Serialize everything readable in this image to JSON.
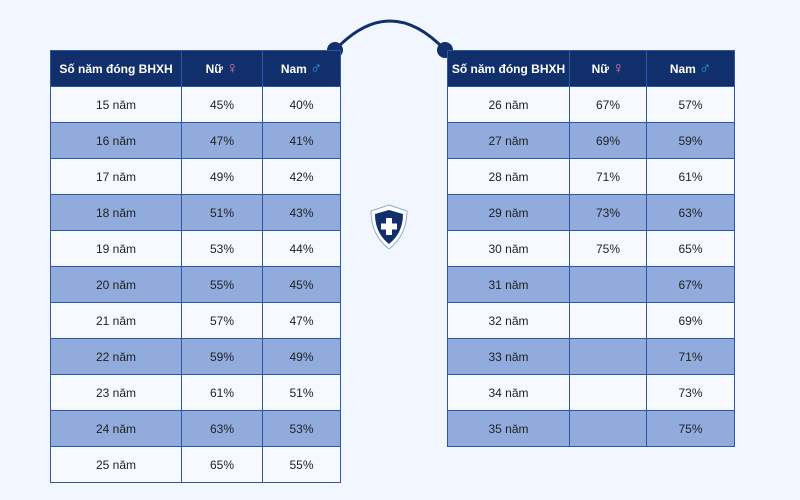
{
  "headers": {
    "years": "Số năm đóng BHXH",
    "female": "Nữ",
    "male": "Nam",
    "female_symbol": "♀",
    "male_symbol": "♂"
  },
  "left_rows": [
    [
      "15 năm",
      "45%",
      "40%"
    ],
    [
      "16 năm",
      "47%",
      "41%"
    ],
    [
      "17 năm",
      "49%",
      "42%"
    ],
    [
      "18 năm",
      "51%",
      "43%"
    ],
    [
      "19 năm",
      "53%",
      "44%"
    ],
    [
      "20 năm",
      "55%",
      "45%"
    ],
    [
      "21 năm",
      "57%",
      "47%"
    ],
    [
      "22 năm",
      "59%",
      "49%"
    ],
    [
      "23 năm",
      "61%",
      "51%"
    ],
    [
      "24 năm",
      "63%",
      "53%"
    ],
    [
      "25 năm",
      "65%",
      "55%"
    ]
  ],
  "right_rows": [
    [
      "26 năm",
      "67%",
      "57%"
    ],
    [
      "27 năm",
      "69%",
      "59%"
    ],
    [
      "28 năm",
      "71%",
      "61%"
    ],
    [
      "29 năm",
      "73%",
      "63%"
    ],
    [
      "30 năm",
      "75%",
      "65%"
    ],
    [
      "31 năm",
      "",
      "67%"
    ],
    [
      "32 năm",
      "",
      "69%"
    ],
    [
      "33 năm",
      "",
      "71%"
    ],
    [
      "34 năm",
      "",
      "73%"
    ],
    [
      "35 năm",
      "",
      "75%"
    ]
  ],
  "colors": {
    "header": "#11306b",
    "alt_row": "#90abdc",
    "border": "#2f55a8",
    "background": "#f2f6fe"
  },
  "icons": {
    "center": "shield-cross-icon"
  }
}
